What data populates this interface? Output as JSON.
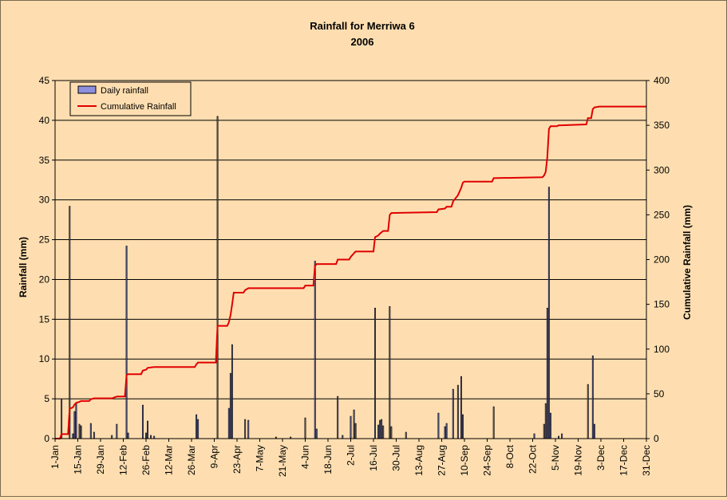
{
  "chart_data": {
    "type": "bar",
    "title": "Rainfall for Merriwa 6",
    "subtitle": "2006",
    "ylabel": "Rainfall (mm)",
    "y2label": "Cumulative Rainfall (mm)",
    "ylim": [
      0,
      45
    ],
    "y2lim": [
      0,
      400
    ],
    "yticks": [
      0,
      5,
      10,
      15,
      20,
      25,
      30,
      35,
      40,
      45
    ],
    "y2ticks": [
      0,
      50,
      100,
      150,
      200,
      250,
      300,
      350,
      400
    ],
    "xlim": [
      0,
      364
    ],
    "xticks": [
      {
        "day": 0,
        "label": "1-Jan"
      },
      {
        "day": 14,
        "label": "15-Jan"
      },
      {
        "day": 28,
        "label": "29-Jan"
      },
      {
        "day": 42,
        "label": "12-Feb"
      },
      {
        "day": 56,
        "label": "26-Feb"
      },
      {
        "day": 70,
        "label": "12-Mar"
      },
      {
        "day": 84,
        "label": "26-Mar"
      },
      {
        "day": 98,
        "label": "9-Apr"
      },
      {
        "day": 112,
        "label": "23-Apr"
      },
      {
        "day": 126,
        "label": "7-May"
      },
      {
        "day": 140,
        "label": "21-May"
      },
      {
        "day": 154,
        "label": "4-Jun"
      },
      {
        "day": 168,
        "label": "18-Jun"
      },
      {
        "day": 182,
        "label": "2-Jul"
      },
      {
        "day": 196,
        "label": "16-Jul"
      },
      {
        "day": 210,
        "label": "30-Jul"
      },
      {
        "day": 224,
        "label": "13-Aug"
      },
      {
        "day": 238,
        "label": "27-Aug"
      },
      {
        "day": 252,
        "label": "10-Sep"
      },
      {
        "day": 266,
        "label": "24-Sep"
      },
      {
        "day": 280,
        "label": "8-Oct"
      },
      {
        "day": 294,
        "label": "22-Oct"
      },
      {
        "day": 308,
        "label": "5-Nov"
      },
      {
        "day": 322,
        "label": "19-Nov"
      },
      {
        "day": 336,
        "label": "3-Dec"
      },
      {
        "day": 350,
        "label": "17-Dec"
      },
      {
        "day": 364,
        "label": "31-Dec"
      }
    ],
    "grid": true,
    "legend_position": "top-left",
    "series": [
      {
        "name": "Daily rainfall",
        "type": "bar",
        "axis": "left",
        "color": "#8f8fe0",
        "points": [
          [
            4,
            4.9
          ],
          [
            9,
            29.2
          ],
          [
            11,
            0.6
          ],
          [
            12,
            3.4
          ],
          [
            13,
            4.4
          ],
          [
            15,
            1.8
          ],
          [
            16,
            1.6
          ],
          [
            22,
            1.9
          ],
          [
            24,
            0.8
          ],
          [
            35,
            0.4
          ],
          [
            38,
            1.8
          ],
          [
            44,
            24.2
          ],
          [
            45,
            0.7
          ],
          [
            54,
            4.2
          ],
          [
            56,
            0.7
          ],
          [
            57,
            2.2
          ],
          [
            59,
            0.4
          ],
          [
            61,
            0.3
          ],
          [
            87,
            3.0
          ],
          [
            88,
            2.4
          ],
          [
            100,
            40.5
          ],
          [
            107,
            3.8
          ],
          [
            108,
            8.2
          ],
          [
            109,
            11.8
          ],
          [
            117,
            2.4
          ],
          [
            119,
            2.3
          ],
          [
            136,
            0.2
          ],
          [
            145,
            0.2
          ],
          [
            154,
            2.6
          ],
          [
            160,
            22.3
          ],
          [
            161,
            1.2
          ],
          [
            174,
            5.3
          ],
          [
            177,
            0.4
          ],
          [
            182,
            2.8
          ],
          [
            184,
            3.6
          ],
          [
            185,
            1.9
          ],
          [
            197,
            16.4
          ],
          [
            199,
            1.7
          ],
          [
            200,
            2.3
          ],
          [
            201,
            2.4
          ],
          [
            202,
            1.6
          ],
          [
            206,
            16.6
          ],
          [
            207,
            1.5
          ],
          [
            216,
            0.8
          ],
          [
            236,
            3.2
          ],
          [
            240,
            1.5
          ],
          [
            241,
            1.9
          ],
          [
            245,
            6.2
          ],
          [
            248,
            6.7
          ],
          [
            250,
            7.8
          ],
          [
            251,
            3.0
          ],
          [
            270,
            4.0
          ],
          [
            295,
            0.6
          ],
          [
            301,
            1.8
          ],
          [
            302,
            4.4
          ],
          [
            303,
            16.4
          ],
          [
            304,
            31.6
          ],
          [
            305,
            3.2
          ],
          [
            310,
            0.3
          ],
          [
            312,
            0.6
          ],
          [
            328,
            6.8
          ],
          [
            331,
            10.4
          ],
          [
            332,
            1.8
          ]
        ]
      },
      {
        "name": "Cumulative Rainfall",
        "type": "line",
        "axis": "right",
        "color": "#e00000",
        "points": [
          [
            0,
            0
          ],
          [
            3,
            0
          ],
          [
            4,
            5
          ],
          [
            8,
            5
          ],
          [
            9,
            34
          ],
          [
            10,
            34
          ],
          [
            11,
            35
          ],
          [
            12,
            38
          ],
          [
            13,
            40
          ],
          [
            15,
            41
          ],
          [
            16,
            42
          ],
          [
            21,
            42
          ],
          [
            22,
            44
          ],
          [
            24,
            45
          ],
          [
            35,
            45
          ],
          [
            38,
            47
          ],
          [
            43,
            47
          ],
          [
            44,
            71
          ],
          [
            45,
            72
          ],
          [
            53,
            72
          ],
          [
            54,
            76
          ],
          [
            56,
            77
          ],
          [
            57,
            79
          ],
          [
            61,
            80
          ],
          [
            86,
            80
          ],
          [
            87,
            83
          ],
          [
            88,
            85
          ],
          [
            99,
            85
          ],
          [
            100,
            126
          ],
          [
            106,
            126
          ],
          [
            107,
            130
          ],
          [
            108,
            138
          ],
          [
            109,
            150
          ],
          [
            110,
            163
          ],
          [
            116,
            163
          ],
          [
            117,
            166
          ],
          [
            119,
            168
          ],
          [
            153,
            168
          ],
          [
            154,
            171
          ],
          [
            159,
            171
          ],
          [
            160,
            193
          ],
          [
            161,
            195
          ],
          [
            173,
            195
          ],
          [
            174,
            200
          ],
          [
            177,
            200
          ],
          [
            181,
            200
          ],
          [
            182,
            203
          ],
          [
            184,
            207
          ],
          [
            185,
            209
          ],
          [
            196,
            209
          ],
          [
            197,
            225
          ],
          [
            199,
            227
          ],
          [
            200,
            229
          ],
          [
            202,
            232
          ],
          [
            205,
            232
          ],
          [
            206,
            250
          ],
          [
            207,
            252
          ],
          [
            235,
            253
          ],
          [
            236,
            256
          ],
          [
            240,
            257
          ],
          [
            241,
            259
          ],
          [
            244,
            259
          ],
          [
            245,
            265
          ],
          [
            248,
            272
          ],
          [
            250,
            280
          ],
          [
            251,
            286
          ],
          [
            252,
            287
          ],
          [
            269,
            287
          ],
          [
            270,
            291
          ],
          [
            300,
            292
          ],
          [
            301,
            294
          ],
          [
            302,
            298
          ],
          [
            303,
            314
          ],
          [
            304,
            346
          ],
          [
            305,
            349
          ],
          [
            309,
            349
          ],
          [
            310,
            350
          ],
          [
            312,
            350
          ],
          [
            327,
            351
          ],
          [
            328,
            358
          ],
          [
            330,
            358
          ],
          [
            331,
            368
          ],
          [
            332,
            370
          ],
          [
            335,
            371
          ],
          [
            364,
            371
          ]
        ]
      }
    ]
  }
}
